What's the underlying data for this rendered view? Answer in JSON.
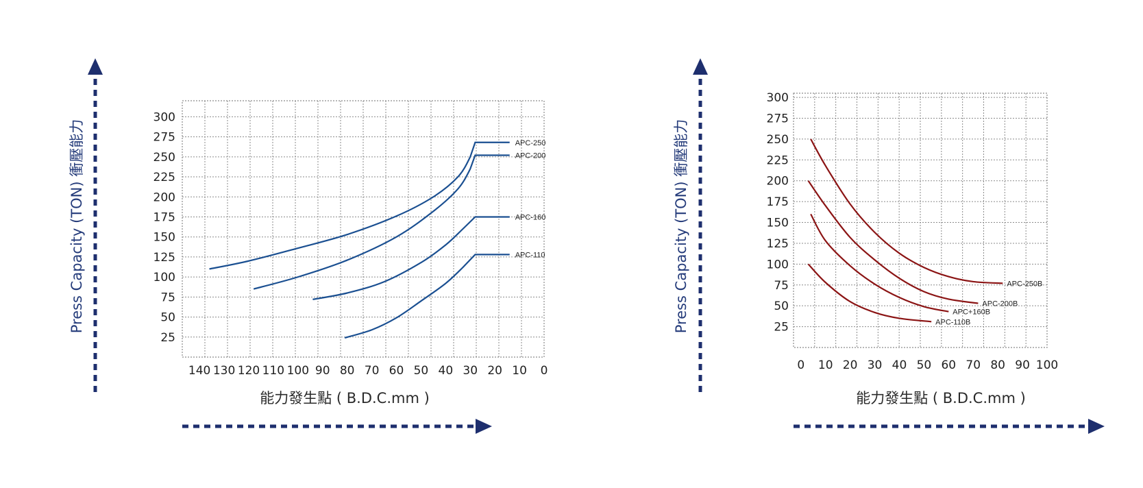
{
  "colors": {
    "axis_arrow": "#1e2f6e",
    "grid": "#8a8a8a",
    "left_series": "#1a4f91",
    "right_series": "#8b1414",
    "ylabel": "#243b7a"
  },
  "chart_data": [
    {
      "type": "line",
      "xlabel": "能力發生點 ( B.D.C.mm )",
      "ylabel": "Press Capacity (TON)  衝壓能力",
      "x_ticks": [
        140,
        130,
        120,
        110,
        100,
        90,
        80,
        70,
        60,
        50,
        40,
        30,
        20,
        10,
        0
      ],
      "y_ticks": [
        25,
        50,
        75,
        100,
        125,
        150,
        175,
        200,
        225,
        250,
        275,
        300
      ],
      "xlim": [
        147,
        0
      ],
      "ylim": [
        0,
        320
      ],
      "grid": true,
      "series": [
        {
          "name": "APC-250",
          "x": [
            136,
            120,
            100,
            80,
            60,
            45,
            35,
            30,
            28,
            14
          ],
          "y": [
            110,
            120,
            136,
            153,
            176,
            200,
            225,
            250,
            268,
            268
          ]
        },
        {
          "name": "APC-200",
          "x": [
            118,
            100,
            80,
            60,
            45,
            35,
            30,
            28,
            14
          ],
          "y": [
            85,
            100,
            121,
            150,
            182,
            210,
            235,
            252,
            252
          ]
        },
        {
          "name": "APC-160",
          "x": [
            94,
            80,
            65,
            50,
            40,
            33,
            28,
            14
          ],
          "y": [
            72,
            80,
            94,
            118,
            140,
            160,
            175,
            175
          ]
        },
        {
          "name": "APC-110",
          "x": [
            81,
            70,
            60,
            50,
            40,
            33,
            28,
            14
          ],
          "y": [
            24,
            34,
            49,
            70,
            92,
            112,
            128,
            128
          ]
        }
      ]
    },
    {
      "type": "line",
      "xlabel": "能力發生點 ( B.D.C.mm )",
      "ylabel": "Press Capacity (TON)  衝壓能力",
      "x_ticks": [
        0,
        10,
        20,
        30,
        40,
        50,
        60,
        70,
        80,
        90,
        100
      ],
      "y_ticks": [
        25,
        50,
        75,
        100,
        125,
        150,
        175,
        200,
        225,
        250,
        275,
        300
      ],
      "xlim": [
        -3,
        100
      ],
      "ylim": [
        0,
        305
      ],
      "grid": true,
      "series": [
        {
          "name": "APC-250B",
          "x": [
            4,
            10,
            20,
            30,
            40,
            50,
            60,
            70,
            82
          ],
          "y": [
            250,
            218,
            172,
            138,
            113,
            96,
            85,
            79,
            77
          ]
        },
        {
          "name": "APC-200B",
          "x": [
            3,
            10,
            20,
            30,
            40,
            50,
            60,
            72
          ],
          "y": [
            200,
            170,
            132,
            105,
            83,
            67,
            58,
            53
          ]
        },
        {
          "name": "APC+160B",
          "x": [
            4,
            10,
            20,
            30,
            40,
            50,
            60
          ],
          "y": [
            160,
            128,
            98,
            76,
            60,
            49,
            43
          ]
        },
        {
          "name": "APC-110B",
          "x": [
            3,
            10,
            20,
            30,
            40,
            53
          ],
          "y": [
            100,
            78,
            55,
            42,
            35,
            31
          ]
        }
      ]
    }
  ]
}
